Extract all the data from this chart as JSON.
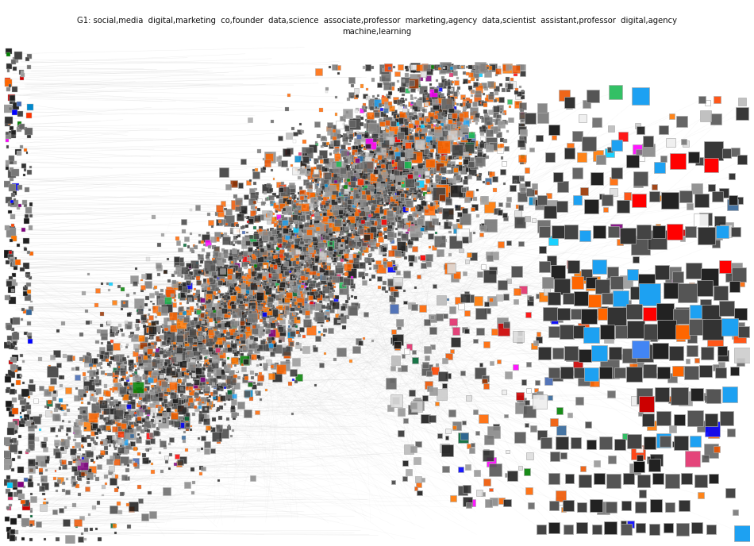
{
  "title_line1": "G1: social,media  digital,marketing  co,founder  data,science  associate,professor  marketing,agency  data,scientist  assistant,professor  digital,agency",
  "title_line2": "machine,learning",
  "background_color": "#ffffff",
  "figsize": [
    9.5,
    6.88
  ],
  "dpi": 100,
  "seed": 42,
  "border_color": "#bbbbbb",
  "edge_color": "#cccccc",
  "node_colors_dark": [
    "#1a1a1a",
    "#222222",
    "#333333",
    "#444444",
    "#555555",
    "#666666",
    "#777777",
    "#888888",
    "#999999"
  ],
  "node_colors_orange": [
    "#ff6600",
    "#ff6600",
    "#ff7700",
    "#ee5500"
  ],
  "node_colors_colored": [
    "#1da1f2",
    "#e1306c",
    "#ff0000",
    "#4267B2",
    "#1DB954",
    "#ff4500",
    "#0088cc",
    "#cc0000",
    "#ff6600",
    "#008000",
    "#800080",
    "#0000ff",
    "#ff00ff",
    "#00ccff",
    "#ff3300",
    "#336699",
    "#993300",
    "#006633"
  ],
  "node_colors_light": [
    "#aaaaaa",
    "#bbbbbb",
    "#cccccc",
    "#dddddd",
    "#eeeeee",
    "#ffffff"
  ]
}
